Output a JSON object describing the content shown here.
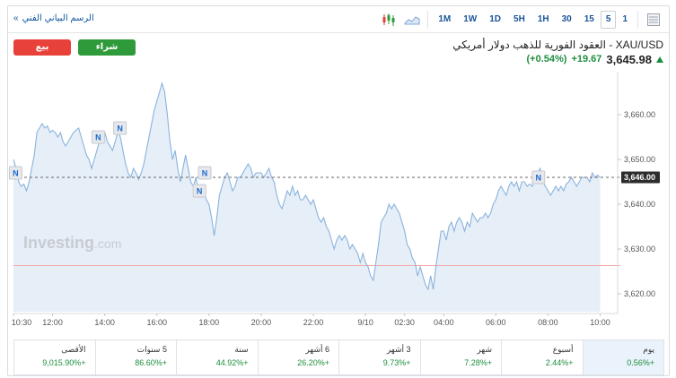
{
  "toolbar": {
    "tech_chart_link": "الرسم البياني الفني",
    "link_chevron": "»",
    "ranges": [
      "1M",
      "1W",
      "1D",
      "5H",
      "1H",
      "30",
      "15",
      "5",
      "1"
    ],
    "active_range": "5"
  },
  "header": {
    "title": "XAU/USD - العقود الفورية للذهب دولار أمريكي",
    "price": "3,645.98",
    "change": "+19.67",
    "change_pct": "(+0.54%)",
    "sell_label": "بيع",
    "buy_label": "شراء"
  },
  "chart_data": {
    "type": "area",
    "watermark": "Investing",
    "watermark_suffix": ".com",
    "ylim": [
      3616,
      3668
    ],
    "y_ticks": [
      3620,
      3630,
      3640,
      3650,
      3660
    ],
    "y_tick_labels": [
      "3,620.00",
      "3,630.00",
      "3,640.00",
      "3,650.00",
      "3,660.00"
    ],
    "x_tick_labels": [
      {
        "label": "10:30",
        "t": 0
      },
      {
        "label": "12:00",
        "t": 90
      },
      {
        "label": "14:00",
        "t": 210
      },
      {
        "label": "16:00",
        "t": 330
      },
      {
        "label": "18:00",
        "t": 450
      },
      {
        "label": "20:00",
        "t": 570
      },
      {
        "label": "22:00",
        "t": 690
      },
      {
        "label": "9/10",
        "t": 810
      },
      {
        "label": "02:30",
        "t": 900
      },
      {
        "label": "04:00",
        "t": 990
      },
      {
        "label": "06:00",
        "t": 1110
      },
      {
        "label": "08:00",
        "t": 1230
      },
      {
        "label": "10:00",
        "t": 1350
      }
    ],
    "xlim": [
      0,
      1380
    ],
    "last_price_label": "3,646.00",
    "last_price": 3646,
    "prev_close": 3626.3,
    "news_markers": [
      {
        "label": "N",
        "t": 5,
        "v": 3647
      },
      {
        "label": "N",
        "t": 195,
        "v": 3655
      },
      {
        "label": "N",
        "t": 245,
        "v": 3657
      },
      {
        "label": "N",
        "t": 428,
        "v": 3643
      },
      {
        "label": "N",
        "t": 440,
        "v": 3647
      },
      {
        "label": "N",
        "t": 1208,
        "v": 3646
      }
    ],
    "series": [
      {
        "points": [
          [
            0,
            3650
          ],
          [
            6,
            3648
          ],
          [
            12,
            3645
          ],
          [
            18,
            3644
          ],
          [
            24,
            3644.5
          ],
          [
            30,
            3643
          ],
          [
            36,
            3645
          ],
          [
            42,
            3648
          ],
          [
            48,
            3651
          ],
          [
            54,
            3656
          ],
          [
            60,
            3657
          ],
          [
            66,
            3658
          ],
          [
            72,
            3657
          ],
          [
            78,
            3657.5
          ],
          [
            84,
            3656
          ],
          [
            90,
            3656.5
          ],
          [
            96,
            3656
          ],
          [
            102,
            3655
          ],
          [
            108,
            3656
          ],
          [
            114,
            3654
          ],
          [
            120,
            3653
          ],
          [
            126,
            3654
          ],
          [
            132,
            3655
          ],
          [
            138,
            3656
          ],
          [
            144,
            3656.5
          ],
          [
            150,
            3657
          ],
          [
            156,
            3655
          ],
          [
            162,
            3653
          ],
          [
            168,
            3651
          ],
          [
            174,
            3650
          ],
          [
            180,
            3648
          ],
          [
            186,
            3650
          ],
          [
            192,
            3652
          ],
          [
            198,
            3654
          ],
          [
            204,
            3655
          ],
          [
            210,
            3656
          ],
          [
            216,
            3654
          ],
          [
            222,
            3653
          ],
          [
            228,
            3652
          ],
          [
            234,
            3654
          ],
          [
            240,
            3656
          ],
          [
            246,
            3655
          ],
          [
            252,
            3652
          ],
          [
            258,
            3649
          ],
          [
            264,
            3647
          ],
          [
            270,
            3646
          ],
          [
            276,
            3648
          ],
          [
            282,
            3647
          ],
          [
            288,
            3645.5
          ],
          [
            294,
            3647
          ],
          [
            300,
            3649
          ],
          [
            306,
            3652
          ],
          [
            312,
            3655
          ],
          [
            318,
            3658
          ],
          [
            324,
            3661
          ],
          [
            330,
            3663
          ],
          [
            336,
            3665
          ],
          [
            342,
            3667
          ],
          [
            348,
            3665
          ],
          [
            354,
            3660
          ],
          [
            360,
            3654
          ],
          [
            366,
            3650
          ],
          [
            372,
            3652
          ],
          [
            378,
            3648
          ],
          [
            384,
            3645
          ],
          [
            390,
            3648
          ],
          [
            396,
            3651
          ],
          [
            402,
            3648
          ],
          [
            408,
            3645
          ],
          [
            414,
            3644
          ],
          [
            420,
            3646
          ],
          [
            426,
            3642
          ],
          [
            432,
            3642
          ],
          [
            438,
            3643
          ],
          [
            444,
            3641
          ],
          [
            450,
            3640
          ],
          [
            456,
            3637
          ],
          [
            462,
            3633
          ],
          [
            468,
            3637
          ],
          [
            474,
            3642
          ],
          [
            480,
            3644
          ],
          [
            486,
            3646
          ],
          [
            492,
            3647
          ],
          [
            498,
            3645
          ],
          [
            504,
            3643
          ],
          [
            510,
            3644
          ],
          [
            516,
            3646
          ],
          [
            522,
            3646
          ],
          [
            528,
            3647
          ],
          [
            534,
            3648
          ],
          [
            540,
            3649
          ],
          [
            546,
            3648
          ],
          [
            552,
            3646
          ],
          [
            558,
            3647
          ],
          [
            564,
            3647
          ],
          [
            570,
            3647
          ],
          [
            576,
            3646
          ],
          [
            582,
            3647
          ],
          [
            588,
            3648
          ],
          [
            594,
            3646
          ],
          [
            600,
            3645
          ],
          [
            606,
            3642
          ],
          [
            612,
            3640
          ],
          [
            618,
            3639
          ],
          [
            624,
            3641
          ],
          [
            630,
            3643
          ],
          [
            636,
            3642
          ],
          [
            642,
            3644
          ],
          [
            648,
            3642
          ],
          [
            654,
            3643
          ],
          [
            660,
            3641
          ],
          [
            666,
            3641
          ],
          [
            672,
            3642
          ],
          [
            678,
            3641
          ],
          [
            684,
            3640
          ],
          [
            690,
            3641
          ],
          [
            696,
            3639
          ],
          [
            702,
            3637
          ],
          [
            708,
            3636
          ],
          [
            714,
            3637
          ],
          [
            720,
            3635
          ],
          [
            726,
            3634
          ],
          [
            732,
            3632
          ],
          [
            738,
            3630
          ],
          [
            744,
            3632
          ],
          [
            750,
            3633
          ],
          [
            756,
            3632
          ],
          [
            762,
            3633
          ],
          [
            768,
            3632
          ],
          [
            774,
            3630
          ],
          [
            780,
            3631
          ],
          [
            786,
            3630
          ],
          [
            792,
            3629
          ],
          [
            798,
            3627
          ],
          [
            804,
            3629
          ],
          [
            810,
            3627
          ],
          [
            816,
            3626
          ],
          [
            822,
            3624
          ],
          [
            828,
            3623
          ],
          [
            834,
            3627
          ],
          [
            840,
            3631
          ],
          [
            846,
            3636
          ],
          [
            852,
            3637
          ],
          [
            858,
            3638
          ],
          [
            864,
            3640
          ],
          [
            870,
            3639
          ],
          [
            876,
            3640
          ],
          [
            882,
            3639
          ],
          [
            888,
            3638
          ],
          [
            894,
            3636
          ],
          [
            900,
            3634
          ],
          [
            906,
            3631
          ],
          [
            912,
            3630
          ],
          [
            918,
            3628
          ],
          [
            924,
            3627
          ],
          [
            930,
            3624
          ],
          [
            936,
            3626
          ],
          [
            942,
            3624
          ],
          [
            948,
            3622
          ],
          [
            954,
            3621
          ],
          [
            960,
            3624
          ],
          [
            966,
            3621
          ],
          [
            972,
            3626
          ],
          [
            978,
            3630
          ],
          [
            984,
            3634
          ],
          [
            990,
            3634
          ],
          [
            996,
            3632
          ],
          [
            1002,
            3635
          ],
          [
            1008,
            3636
          ],
          [
            1014,
            3634
          ],
          [
            1020,
            3636
          ],
          [
            1026,
            3637
          ],
          [
            1032,
            3636
          ],
          [
            1038,
            3634
          ],
          [
            1044,
            3636
          ],
          [
            1050,
            3635
          ],
          [
            1056,
            3638
          ],
          [
            1062,
            3637
          ],
          [
            1068,
            3636
          ],
          [
            1074,
            3637
          ],
          [
            1080,
            3637
          ],
          [
            1086,
            3638
          ],
          [
            1092,
            3637
          ],
          [
            1098,
            3638
          ],
          [
            1104,
            3640
          ],
          [
            1110,
            3641
          ],
          [
            1116,
            3643
          ],
          [
            1122,
            3644
          ],
          [
            1128,
            3643
          ],
          [
            1134,
            3642
          ],
          [
            1140,
            3644
          ],
          [
            1146,
            3645
          ],
          [
            1152,
            3644
          ],
          [
            1158,
            3645
          ],
          [
            1164,
            3643
          ],
          [
            1170,
            3645
          ],
          [
            1176,
            3645
          ],
          [
            1182,
            3644
          ],
          [
            1188,
            3644.5
          ],
          [
            1194,
            3644
          ],
          [
            1200,
            3646
          ],
          [
            1206,
            3647
          ],
          [
            1212,
            3648
          ],
          [
            1218,
            3645
          ],
          [
            1224,
            3644
          ],
          [
            1230,
            3643
          ],
          [
            1236,
            3642
          ],
          [
            1242,
            3643
          ],
          [
            1248,
            3644
          ],
          [
            1254,
            3643
          ],
          [
            1260,
            3644
          ],
          [
            1266,
            3643
          ],
          [
            1272,
            3644.5
          ],
          [
            1278,
            3645
          ],
          [
            1284,
            3646
          ],
          [
            1290,
            3645
          ],
          [
            1296,
            3644
          ],
          [
            1302,
            3645
          ],
          [
            1308,
            3646
          ],
          [
            1314,
            3646
          ],
          [
            1320,
            3646
          ],
          [
            1326,
            3645
          ],
          [
            1332,
            3647
          ],
          [
            1338,
            3646
          ],
          [
            1344,
            3646.5
          ],
          [
            1350,
            3646
          ]
        ]
      }
    ]
  },
  "performance": [
    {
      "label": "يوم",
      "value": "+0.56%",
      "active": true
    },
    {
      "label": "أسبوع",
      "value": "+2.44%",
      "active": false
    },
    {
      "label": "شهر",
      "value": "+7.28%",
      "active": false
    },
    {
      "label": "3 أشهر",
      "value": "+9.73%",
      "active": false
    },
    {
      "label": "6 أشهر",
      "value": "+26.20%",
      "active": false
    },
    {
      "label": "سنة",
      "value": "+44.92%",
      "active": false
    },
    {
      "label": "5 سنوات",
      "value": "+86.60%",
      "active": false
    },
    {
      "label": "الأقصى",
      "value": "+9,015.90%",
      "active": false
    }
  ],
  "colors": {
    "line": "#8ab3de",
    "fill": "#e6eef7",
    "prev_close": "#f2a7a4",
    "marker_bg": "#e6e8eb",
    "marker_text": "#1b6bd0",
    "up": "#1e8e3e"
  }
}
